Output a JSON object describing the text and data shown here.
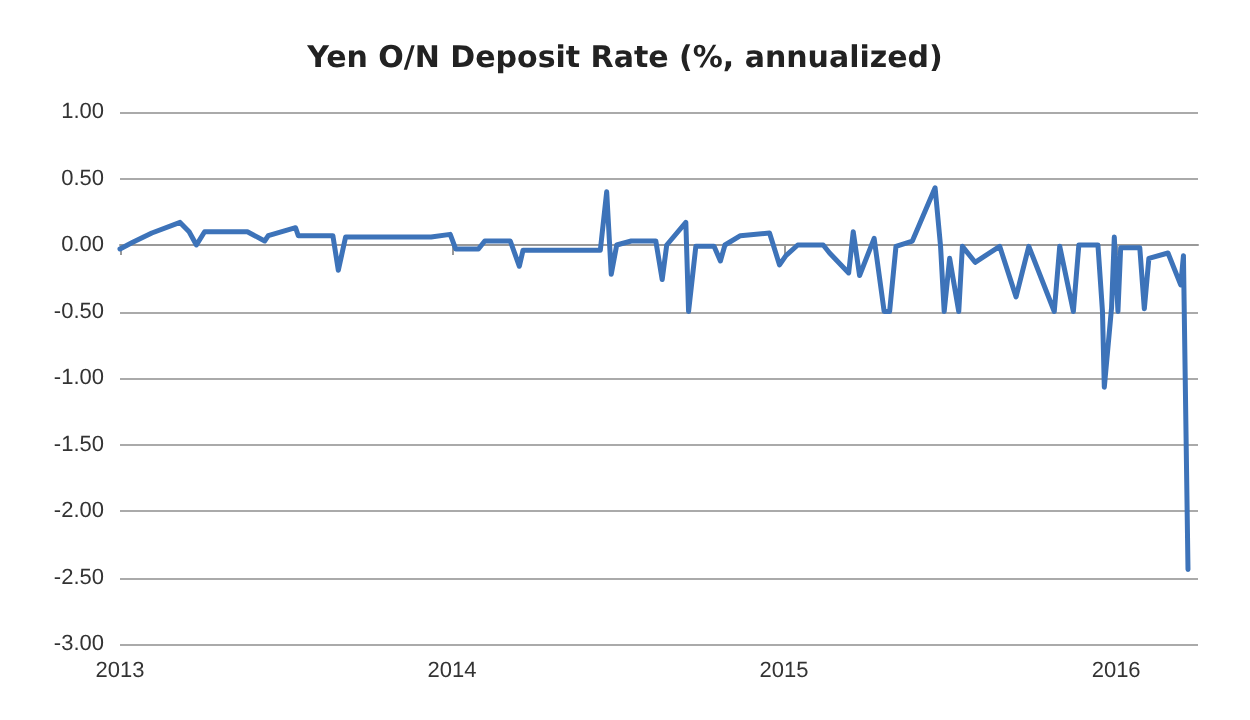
{
  "chart_data": {
    "type": "line",
    "title": "Yen O/N Deposit Rate (%, annualized)",
    "x": [
      "2013-01-01",
      "2013-01-15",
      "2013-02-05",
      "2013-03-08",
      "2013-03-18",
      "2013-03-26",
      "2013-04-04",
      "2013-05-21",
      "2013-06-09",
      "2013-06-13",
      "2013-07-13",
      "2013-07-16",
      "2013-08-23",
      "2013-08-29",
      "2013-09-06",
      "2013-12-09",
      "2013-12-30",
      "2014-01-05",
      "2014-01-30",
      "2014-02-06",
      "2014-03-06",
      "2014-03-16",
      "2014-03-20",
      "2014-06-13",
      "2014-06-20",
      "2014-06-25",
      "2014-07-01",
      "2014-07-17",
      "2014-08-13",
      "2014-08-20",
      "2014-08-25",
      "2014-09-15",
      "2014-09-18",
      "2014-09-26",
      "2014-10-16",
      "2014-10-23",
      "2014-10-28",
      "2014-11-14",
      "2014-12-16",
      "2014-12-27",
      "2015-01-03",
      "2015-01-16",
      "2015-02-13",
      "2015-02-20",
      "2015-03-13",
      "2015-03-18",
      "2015-03-25",
      "2015-04-10",
      "2015-04-21",
      "2015-04-27",
      "2015-05-04",
      "2015-05-22",
      "2015-06-16",
      "2015-06-22",
      "2015-06-26",
      "2015-07-02",
      "2015-07-12",
      "2015-07-16",
      "2015-07-30",
      "2015-08-26",
      "2015-09-13",
      "2015-09-27",
      "2015-10-25",
      "2015-10-31",
      "2015-11-15",
      "2015-11-21",
      "2015-12-12",
      "2015-12-17",
      "2015-12-19",
      "2015-12-27",
      "2015-12-30",
      "2016-01-03",
      "2016-01-06",
      "2016-01-27",
      "2016-02-01",
      "2016-02-06",
      "2016-02-27",
      "2016-03-12",
      "2016-03-15",
      "2016-03-20"
    ],
    "series": [
      {
        "color": "#3d73b9",
        "values": [
          -0.03,
          0.02,
          0.09,
          0.17,
          0.1,
          0.0,
          0.1,
          0.1,
          0.03,
          0.07,
          0.13,
          0.07,
          0.07,
          -0.19,
          0.06,
          0.06,
          0.08,
          -0.03,
          -0.03,
          0.03,
          0.03,
          -0.16,
          -0.04,
          -0.04,
          0.4,
          -0.22,
          0.0,
          0.03,
          0.03,
          -0.26,
          0.0,
          0.17,
          -0.5,
          -0.01,
          -0.01,
          -0.12,
          0.0,
          0.07,
          0.09,
          -0.15,
          -0.08,
          0.0,
          0.0,
          -0.06,
          -0.21,
          0.1,
          -0.23,
          0.05,
          -0.5,
          -0.5,
          -0.01,
          0.03,
          0.43,
          -0.01,
          -0.5,
          -0.1,
          -0.5,
          -0.01,
          -0.13,
          -0.01,
          -0.39,
          -0.01,
          -0.5,
          -0.01,
          -0.5,
          0.0,
          0.0,
          -0.5,
          -1.07,
          -0.47,
          0.06,
          -0.5,
          -0.02,
          -0.02,
          -0.48,
          -0.1,
          -0.06,
          -0.3,
          -0.08,
          -2.44
        ]
      }
    ],
    "xlim": [
      "2013-01-01",
      "2016-03-31"
    ],
    "xticks": [
      "2013",
      "2014",
      "2015",
      "2016"
    ],
    "ylim": [
      -3,
      1
    ],
    "yticks": [
      {
        "value": -3,
        "label": "-3.00"
      },
      {
        "value": -2.5,
        "label": "-2.50"
      },
      {
        "value": -2,
        "label": "-2.00"
      },
      {
        "value": -1.5,
        "label": "-1.50"
      },
      {
        "value": -1,
        "label": "-1.00"
      },
      {
        "value": -0.5,
        "label": "-0.50"
      },
      {
        "value": 0,
        "label": "0.00"
      },
      {
        "value": 0.5,
        "label": "0.50"
      },
      {
        "value": 1,
        "label": "1.00"
      }
    ],
    "grid": "y",
    "marker": "none",
    "line_style": "solid"
  }
}
